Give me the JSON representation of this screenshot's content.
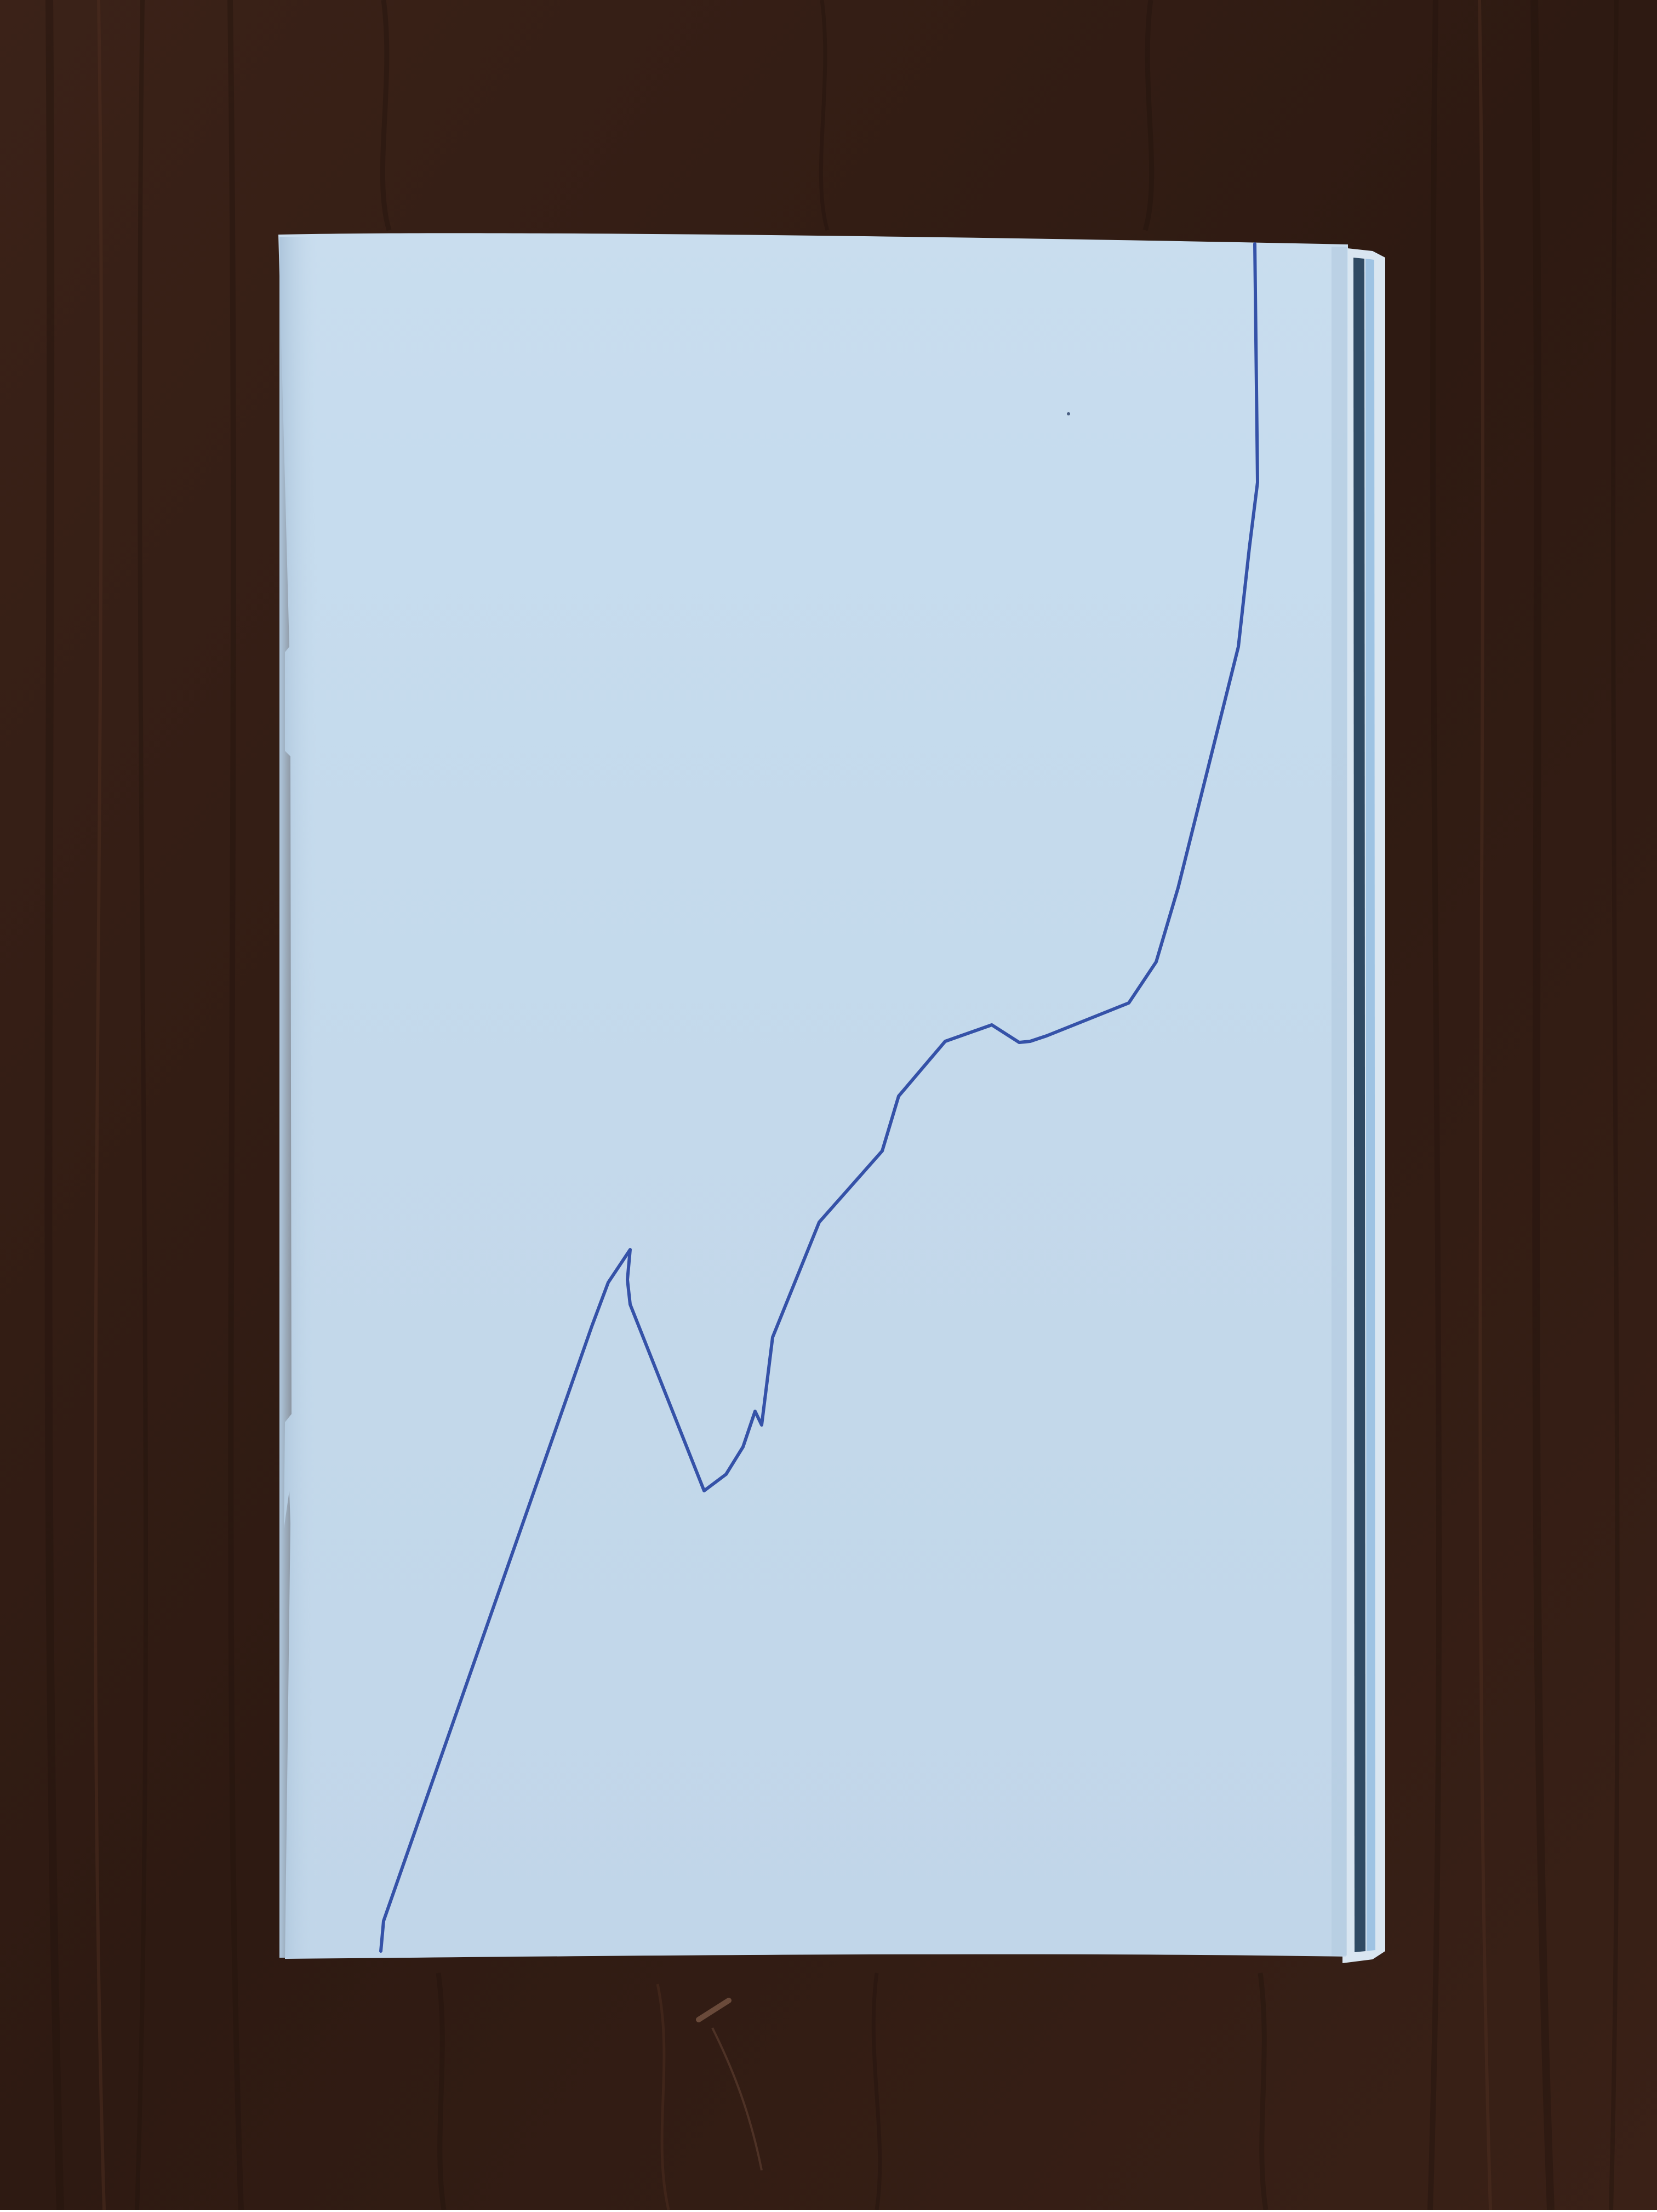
{
  "photo": {
    "subject": "booklet-on-table",
    "colors": {
      "table_dark": "#2a1810",
      "table_mid": "#3b2218",
      "table_light": "#4a2c1f",
      "paper": "#c7dcee",
      "paper_shade": "#b6cde2",
      "page_edges": "#d9e6f1",
      "inner_pages": "#2f4a63",
      "line": "#3552a8"
    }
  }
}
